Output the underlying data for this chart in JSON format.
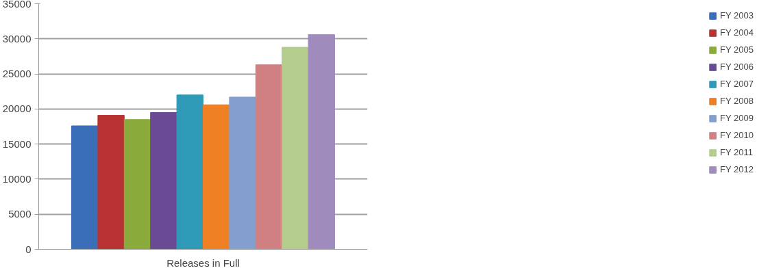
{
  "chart_data": {
    "type": "bar",
    "categories": [
      "Releases in Full"
    ],
    "series": [
      {
        "name": "FY 2003",
        "color": "#3a6eb8",
        "values": [
          17600
        ]
      },
      {
        "name": "FY 2004",
        "color": "#b83232",
        "values": [
          19100
        ]
      },
      {
        "name": "FY 2005",
        "color": "#8aaa3c",
        "values": [
          18500
        ]
      },
      {
        "name": "FY 2006",
        "color": "#6a4a94",
        "values": [
          19500
        ]
      },
      {
        "name": "FY 2007",
        "color": "#2e9ab8",
        "values": [
          22000
        ]
      },
      {
        "name": "FY 2008",
        "color": "#ee7f22",
        "values": [
          20600
        ]
      },
      {
        "name": "FY 2009",
        "color": "#829fd0",
        "values": [
          21700
        ]
      },
      {
        "name": "FY 2010",
        "color": "#d08080",
        "values": [
          26300
        ]
      },
      {
        "name": "FY 2011",
        "color": "#b4cc8c",
        "values": [
          28800
        ]
      },
      {
        "name": "FY 2012",
        "color": "#a08cbc",
        "values": [
          30600
        ]
      }
    ],
    "ylim": [
      0,
      35000
    ],
    "yticks": [
      0,
      5000,
      10000,
      15000,
      20000,
      25000,
      30000,
      35000
    ],
    "grid": "y",
    "legend": "right"
  }
}
